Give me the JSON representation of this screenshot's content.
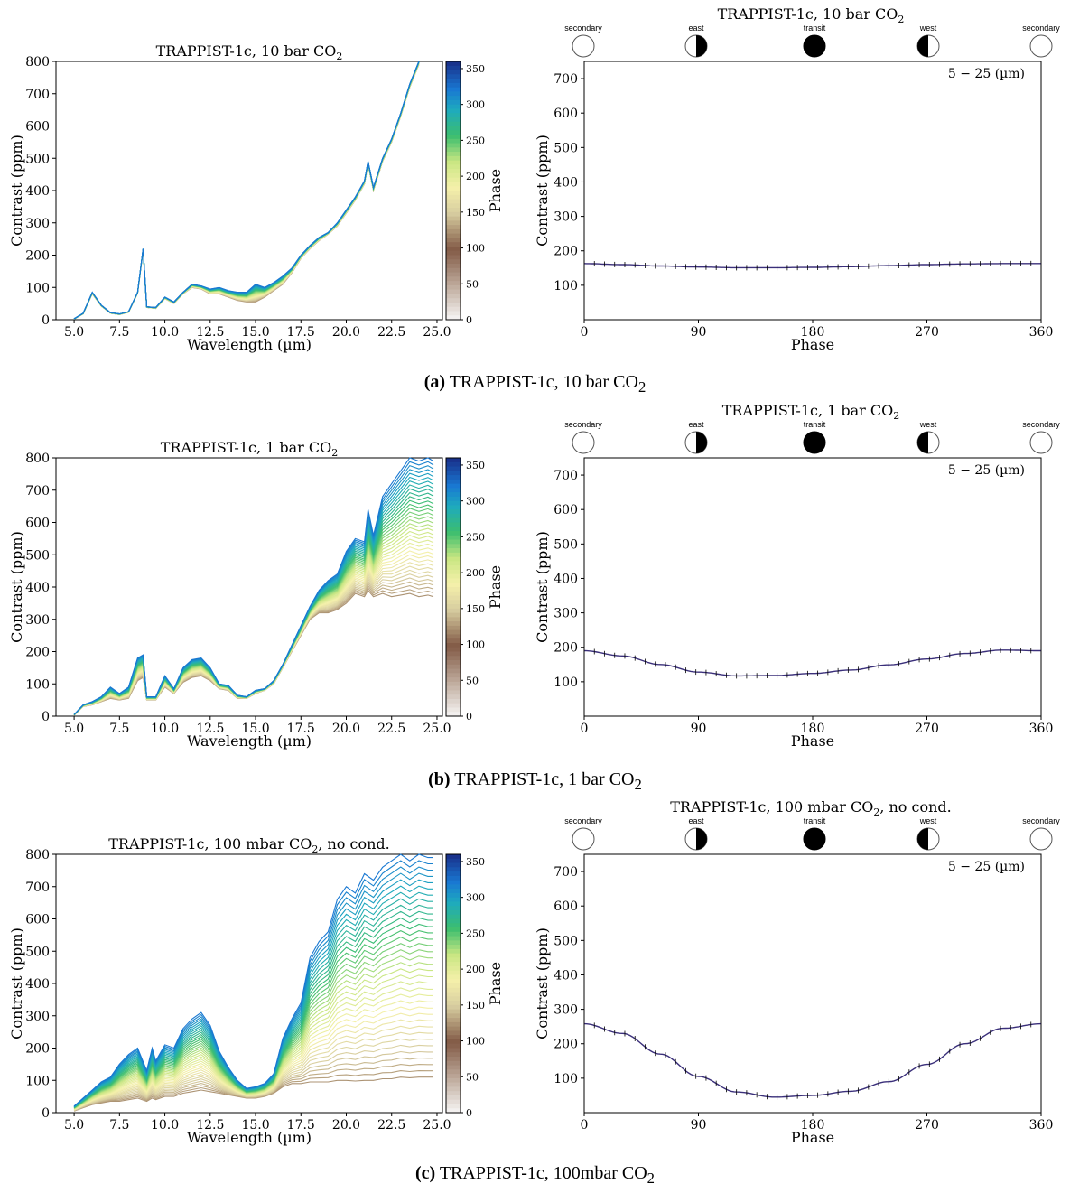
{
  "figure": {
    "panels": [
      {
        "caption": {
          "letter": "(a)",
          "text": "TRAPPIST-1c, 10 bar CO",
          "sub": "2"
        },
        "spectrum": {
          "title": "TRAPPIST-1c, 10 bar CO",
          "title_sub": "2",
          "title_tail": ""
        },
        "phasecurve": {
          "title": "TRAPPIST-1c, 10 bar CO",
          "title_sub": "2",
          "title_tail": ""
        }
      },
      {
        "caption": {
          "letter": "(b)",
          "text": "TRAPPIST-1c, 1 bar CO",
          "sub": "2"
        },
        "spectrum": {
          "title": "TRAPPIST-1c, 1 bar CO",
          "title_sub": "2",
          "title_tail": ""
        },
        "phasecurve": {
          "title": "TRAPPIST-1c, 1 bar CO",
          "title_sub": "2",
          "title_tail": ""
        }
      },
      {
        "caption": {
          "letter": "(c)",
          "text": "TRAPPIST-1c, 100mbar CO",
          "sub": "2"
        },
        "spectrum": {
          "title": "TRAPPIST-1c, 100 mbar CO",
          "title_sub": "2",
          "title_tail": ", no cond."
        },
        "phasecurve": {
          "title": "TRAPPIST-1c, 100 mbar CO",
          "title_sub": "2",
          "title_tail": ", no cond."
        }
      }
    ],
    "phase_icons": [
      "secondary",
      "east",
      "transit",
      "west",
      "secondary"
    ]
  },
  "chart_data": [
    {
      "type": "line",
      "title": "TRAPPIST-1c, 10 bar CO2",
      "xlabel": "Wavelength (µm)",
      "ylabel": "Contrast (ppm)",
      "xlim": [
        4.0,
        25.3
      ],
      "ylim": [
        0,
        800
      ],
      "xticks": [
        "5.0",
        "7.5",
        "10.0",
        "12.5",
        "15.0",
        "17.5",
        "20.0",
        "22.5",
        "25.0"
      ],
      "yticks": [
        "0",
        "100",
        "200",
        "300",
        "400",
        "500",
        "600",
        "700",
        "800"
      ],
      "colorbar": {
        "label": "Phase",
        "ticks": [
          "0",
          "50",
          "100",
          "150",
          "200",
          "250",
          "300",
          "350"
        ],
        "range": [
          0,
          360
        ]
      },
      "x": [
        5.0,
        5.5,
        6.0,
        6.5,
        7.0,
        7.5,
        8.0,
        8.5,
        8.8,
        9.0,
        9.5,
        10.0,
        10.5,
        11.0,
        11.5,
        12.0,
        12.5,
        13.0,
        13.5,
        14.0,
        14.5,
        15.0,
        15.5,
        16.0,
        16.5,
        17.0,
        17.5,
        18.0,
        18.5,
        19.0,
        19.5,
        20.0,
        20.5,
        21.0,
        21.2,
        21.5,
        22.0,
        22.5,
        23.0,
        23.5,
        24.0
      ],
      "max_curve": [
        3,
        20,
        85,
        45,
        22,
        18,
        25,
        85,
        220,
        40,
        38,
        70,
        55,
        85,
        110,
        105,
        95,
        100,
        90,
        85,
        85,
        110,
        100,
        115,
        135,
        160,
        200,
        230,
        255,
        270,
        300,
        340,
        380,
        430,
        490,
        410,
        500,
        560,
        640,
        730,
        800
      ],
      "min_curve": [
        2,
        18,
        80,
        42,
        20,
        16,
        23,
        82,
        215,
        38,
        35,
        65,
        50,
        80,
        100,
        95,
        80,
        80,
        70,
        60,
        55,
        55,
        70,
        90,
        110,
        145,
        190,
        220,
        245,
        265,
        290,
        330,
        370,
        420,
        480,
        400,
        490,
        550,
        630,
        720,
        790
      ],
      "n_curves": 36
    },
    {
      "type": "line",
      "title": "TRAPPIST-1c, 10 bar CO2",
      "xlabel": "Phase",
      "ylabel": "Contrast (ppm)",
      "xlim": [
        0,
        360
      ],
      "ylim": [
        0,
        750
      ],
      "xticks": [
        "0",
        "90",
        "180",
        "270",
        "360"
      ],
      "yticks": [
        "100",
        "200",
        "300",
        "400",
        "500",
        "600",
        "700"
      ],
      "annotation": "5 − 25 (µm)",
      "x": [
        0,
        30,
        60,
        90,
        120,
        150,
        180,
        210,
        240,
        270,
        300,
        330,
        360
      ],
      "y": [
        163,
        160,
        156,
        153,
        151,
        151,
        152,
        154,
        157,
        160,
        162,
        163,
        163
      ]
    },
    {
      "type": "line",
      "title": "TRAPPIST-1c, 1 bar CO2",
      "xlabel": "Wavelength (µm)",
      "ylabel": "Contrast (ppm)",
      "xlim": [
        4.0,
        25.3
      ],
      "ylim": [
        0,
        800
      ],
      "xticks": [
        "5.0",
        "7.5",
        "10.0",
        "12.5",
        "15.0",
        "17.5",
        "20.0",
        "22.5",
        "25.0"
      ],
      "yticks": [
        "0",
        "100",
        "200",
        "300",
        "400",
        "500",
        "600",
        "700",
        "800"
      ],
      "colorbar": {
        "label": "Phase",
        "ticks": [
          "0",
          "50",
          "100",
          "150",
          "200",
          "250",
          "300",
          "350"
        ],
        "range": [
          0,
          360
        ]
      },
      "x": [
        5.0,
        5.5,
        6.0,
        6.5,
        7.0,
        7.5,
        8.0,
        8.5,
        8.8,
        9.0,
        9.5,
        10.0,
        10.5,
        11.0,
        11.5,
        12.0,
        12.5,
        13.0,
        13.5,
        14.0,
        14.5,
        15.0,
        15.5,
        16.0,
        16.5,
        17.0,
        17.5,
        18.0,
        18.5,
        19.0,
        19.5,
        20.0,
        20.5,
        21.0,
        21.2,
        21.5,
        22.0,
        22.5,
        23.0,
        23.5,
        24.0,
        24.5,
        24.8
      ],
      "max_curve": [
        5,
        35,
        45,
        60,
        90,
        70,
        90,
        180,
        190,
        60,
        60,
        125,
        85,
        150,
        175,
        180,
        150,
        100,
        95,
        65,
        60,
        80,
        85,
        110,
        160,
        220,
        280,
        340,
        390,
        420,
        440,
        510,
        550,
        540,
        640,
        560,
        680,
        720,
        760,
        800,
        790,
        800,
        790
      ],
      "min_curve": [
        3,
        30,
        35,
        45,
        55,
        50,
        55,
        110,
        120,
        50,
        50,
        90,
        70,
        105,
        120,
        125,
        110,
        85,
        80,
        55,
        55,
        70,
        80,
        100,
        150,
        200,
        250,
        300,
        320,
        320,
        330,
        350,
        380,
        370,
        390,
        370,
        380,
        370,
        375,
        380,
        370,
        375,
        370
      ],
      "n_curves": 36
    },
    {
      "type": "line",
      "title": "TRAPPIST-1c, 1 bar CO2",
      "xlabel": "Phase",
      "ylabel": "Contrast (ppm)",
      "xlim": [
        0,
        360
      ],
      "ylim": [
        0,
        750
      ],
      "xticks": [
        "0",
        "90",
        "180",
        "270",
        "360"
      ],
      "yticks": [
        "100",
        "200",
        "300",
        "400",
        "500",
        "600",
        "700"
      ],
      "annotation": "5 − 25 (µm)",
      "x": [
        0,
        30,
        60,
        90,
        120,
        150,
        180,
        210,
        240,
        270,
        300,
        330,
        360
      ],
      "y": [
        190,
        175,
        150,
        128,
        117,
        118,
        124,
        134,
        149,
        166,
        182,
        192,
        190
      ]
    },
    {
      "type": "line",
      "title": "TRAPPIST-1c, 100 mbar CO2, no cond.",
      "xlabel": "Wavelength (µm)",
      "ylabel": "Contrast (ppm)",
      "xlim": [
        4.0,
        25.3
      ],
      "ylim": [
        0,
        800
      ],
      "xticks": [
        "5.0",
        "7.5",
        "10.0",
        "12.5",
        "15.0",
        "17.5",
        "20.0",
        "22.5",
        "25.0"
      ],
      "yticks": [
        "0",
        "100",
        "200",
        "300",
        "400",
        "500",
        "600",
        "700",
        "800"
      ],
      "colorbar": {
        "label": "Phase",
        "ticks": [
          "0",
          "50",
          "100",
          "150",
          "200",
          "250",
          "300",
          "350"
        ],
        "range": [
          0,
          360
        ]
      },
      "x": [
        5.0,
        5.5,
        6.0,
        6.5,
        7.0,
        7.5,
        8.0,
        8.5,
        9.0,
        9.3,
        9.5,
        10.0,
        10.5,
        11.0,
        11.5,
        12.0,
        12.5,
        13.0,
        13.5,
        14.0,
        14.5,
        15.0,
        15.5,
        16.0,
        16.5,
        17.0,
        17.5,
        18.0,
        18.5,
        19.0,
        19.5,
        20.0,
        20.5,
        21.0,
        21.5,
        22.0,
        22.5,
        23.0,
        23.5,
        24.0,
        24.5,
        24.8
      ],
      "max_curve": [
        20,
        45,
        70,
        95,
        110,
        150,
        180,
        200,
        130,
        200,
        160,
        210,
        200,
        260,
        290,
        310,
        270,
        190,
        140,
        100,
        75,
        80,
        90,
        120,
        230,
        290,
        340,
        480,
        530,
        560,
        660,
        700,
        680,
        740,
        720,
        760,
        780,
        800,
        780,
        800,
        790,
        790
      ],
      "min_curve": [
        5,
        15,
        25,
        30,
        35,
        35,
        40,
        45,
        35,
        45,
        40,
        50,
        50,
        60,
        65,
        70,
        65,
        60,
        55,
        50,
        45,
        45,
        50,
        60,
        80,
        90,
        90,
        95,
        95,
        95,
        100,
        100,
        98,
        100,
        100,
        105,
        105,
        110,
        108,
        110,
        110,
        110
      ],
      "n_curves": 36
    },
    {
      "type": "line",
      "title": "TRAPPIST-1c, 100 mbar CO2, no cond.",
      "xlabel": "Phase",
      "ylabel": "Contrast (ppm)",
      "xlim": [
        0,
        360
      ],
      "ylim": [
        0,
        750
      ],
      "xticks": [
        "0",
        "90",
        "180",
        "270",
        "360"
      ],
      "yticks": [
        "100",
        "200",
        "300",
        "400",
        "500",
        "600",
        "700"
      ],
      "annotation": "5 − 25 (µm)",
      "x": [
        0,
        30,
        60,
        90,
        120,
        150,
        180,
        210,
        240,
        270,
        300,
        330,
        360
      ],
      "y": [
        258,
        230,
        170,
        105,
        60,
        45,
        50,
        62,
        90,
        140,
        200,
        245,
        258
      ]
    }
  ]
}
